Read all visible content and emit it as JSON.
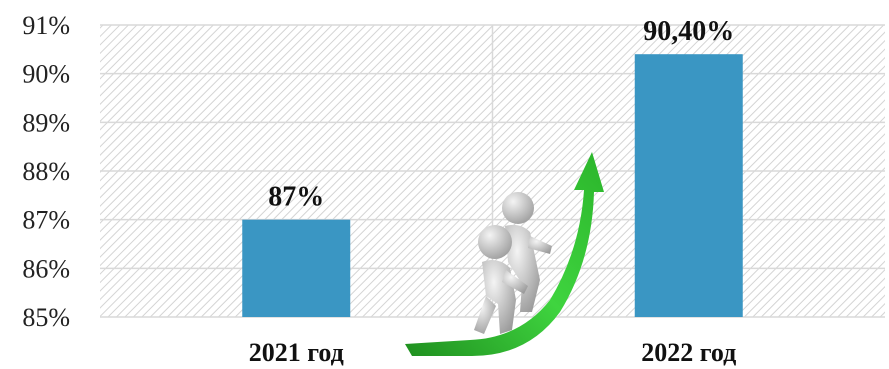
{
  "chart_data": {
    "type": "bar",
    "categories": [
      "2021 год",
      "2022 год"
    ],
    "values": [
      87,
      90.4
    ],
    "data_labels": [
      "87%",
      "90,40%"
    ],
    "ylim": [
      85,
      91
    ],
    "y_ticks": [
      85,
      86,
      87,
      88,
      89,
      90,
      91
    ],
    "y_tick_labels": [
      "85%",
      "86%",
      "87%",
      "88%",
      "89%",
      "90%",
      "91%"
    ],
    "grid": true,
    "bar_color": "#3a96c3",
    "plot_background": "hatched light gray",
    "decoration": "figures-climbing-green-arrow-illustration"
  }
}
